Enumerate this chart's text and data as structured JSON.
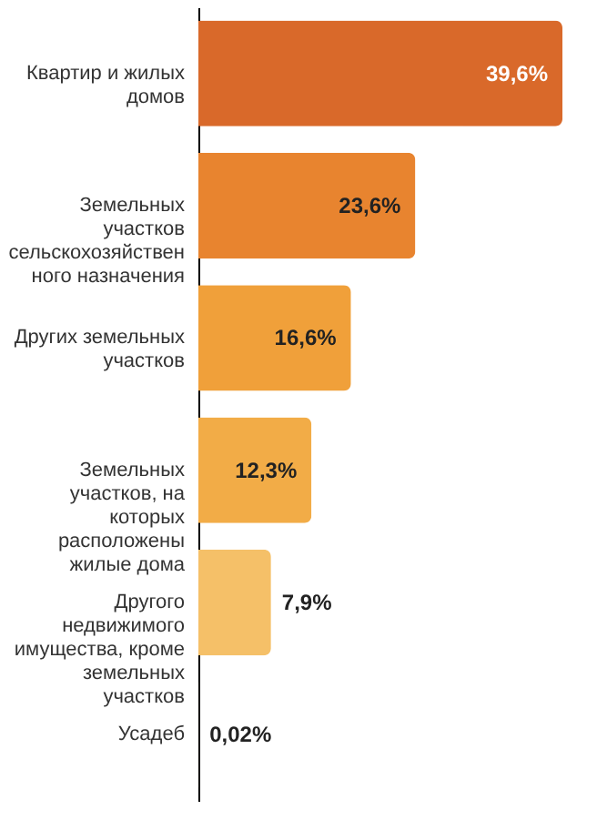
{
  "chart_data": {
    "type": "bar",
    "orientation": "horizontal",
    "categories": [
      "Квартир и жилых домов",
      "Земельных участков сельскохозяйственного назначения",
      "Других земельных участков",
      "Земельных участков, на которых расположены жилые дома",
      "Другого недвижимого имущества, кроме земельных участков",
      "Усадеб"
    ],
    "values": [
      39.6,
      23.6,
      16.6,
      12.3,
      7.9,
      0.02
    ],
    "value_labels": [
      "39,6%",
      "23,6%",
      "16,6%",
      "12,3%",
      "7,9%",
      "0,02%"
    ],
    "colors": [
      "#d9692a",
      "#e8842f",
      "#f0a03a",
      "#f2ac47",
      "#f5c068",
      "#f8dc9a"
    ]
  }
}
